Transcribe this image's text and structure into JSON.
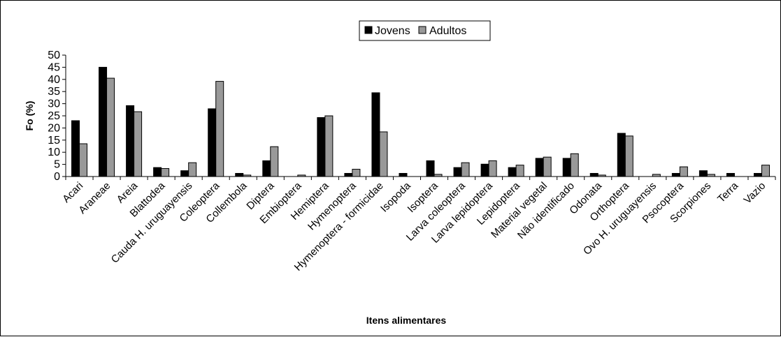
{
  "chart_data": {
    "type": "bar",
    "title": "",
    "xlabel": "Itens alimentares",
    "ylabel": "Fo (%)",
    "ylim": [
      0,
      50
    ],
    "yticks": [
      0,
      5,
      10,
      15,
      20,
      25,
      30,
      35,
      40,
      45,
      50
    ],
    "grid": false,
    "legend_position": "top-center",
    "categories": [
      "Acari",
      "Araneae",
      "Areia",
      "Blattodea",
      "Cauda H. uruguayensis",
      "Coleoptera",
      "Collembola",
      "Diptera",
      "Embioptera",
      "Hemiptera",
      "Hymenoptera",
      "Hymenoptera - formicidae",
      "Isopoda",
      "Isoptera",
      "Larva coleoptera",
      "Larva lepidoptera",
      "Lepidoptera",
      "Material vegetal",
      "Não identificado",
      "Odonata",
      "Orthoptera",
      "Ovo H. uruguayensis",
      "Psocoptera",
      "Scorpiones",
      "Terra",
      "Vazio"
    ],
    "series": [
      {
        "name": "Jovens",
        "color": "#000000",
        "values": [
          23,
          45,
          29.2,
          3.7,
          2.4,
          27.9,
          1.3,
          6.5,
          0,
          24.3,
          1.3,
          34.5,
          1.3,
          6.5,
          3.7,
          5.1,
          3.7,
          7.5,
          7.5,
          1.3,
          17.8,
          0,
          1.3,
          2.4,
          1.3,
          1.3
        ]
      },
      {
        "name": "Adultos",
        "color": "#999999",
        "values": [
          13.5,
          40.5,
          26.7,
          3.3,
          5.7,
          39.2,
          0.6,
          12.3,
          0.6,
          25,
          3,
          18.4,
          0,
          0.9,
          5.7,
          6.5,
          4.7,
          8,
          9.4,
          0.6,
          16.7,
          0.9,
          4,
          0.9,
          0,
          4.7
        ]
      }
    ]
  }
}
